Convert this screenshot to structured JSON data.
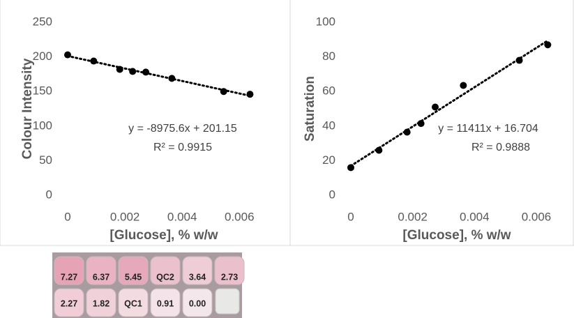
{
  "chart_data": [
    {
      "type": "scatter",
      "color": "#000000",
      "y_label": "Colour Intensity",
      "x_label": "[Glucose], % w/w",
      "x": [
        0,
        0.00091,
        0.00182,
        0.00227,
        0.00273,
        0.00364,
        0.00545,
        0.00637
      ],
      "values": [
        203,
        194,
        182,
        179,
        178,
        169,
        150,
        146
      ],
      "xlim": [
        0,
        0.0067
      ],
      "ylim": [
        0,
        250
      ],
      "xticks": [
        0,
        0.002,
        0.004,
        0.006
      ],
      "yticks": [
        0,
        50,
        100,
        150,
        200,
        250
      ],
      "grid": false,
      "trendline": true,
      "annotations": [
        "y = -8975.6x + 201.15",
        "R² = 0.9915"
      ]
    },
    {
      "type": "scatter",
      "color": "#000000",
      "y_label": "Saturation",
      "x_label": "[Glucose], % w/w",
      "x": [
        0,
        0.00091,
        0.00182,
        0.00227,
        0.00273,
        0.00364,
        0.00545,
        0.00637
      ],
      "values": [
        16,
        26,
        36.5,
        41.5,
        51,
        63.5,
        78,
        87
      ],
      "xlim": [
        0,
        0.0067
      ],
      "ylim": [
        0,
        100
      ],
      "xticks": [
        0,
        0.002,
        0.004,
        0.006
      ],
      "yticks": [
        0,
        20,
        40,
        60,
        80,
        100
      ],
      "grid": false,
      "trendline": true,
      "annotations": [
        "y = 11411x + 16.704",
        "R² = 0.9888"
      ]
    }
  ],
  "wells": [
    [
      "7.27",
      "6.37",
      "5.45",
      "QC2",
      "3.64",
      "2.73"
    ],
    [
      "2.27",
      "1.82",
      "QC1",
      "0.91",
      "0.00"
    ]
  ]
}
